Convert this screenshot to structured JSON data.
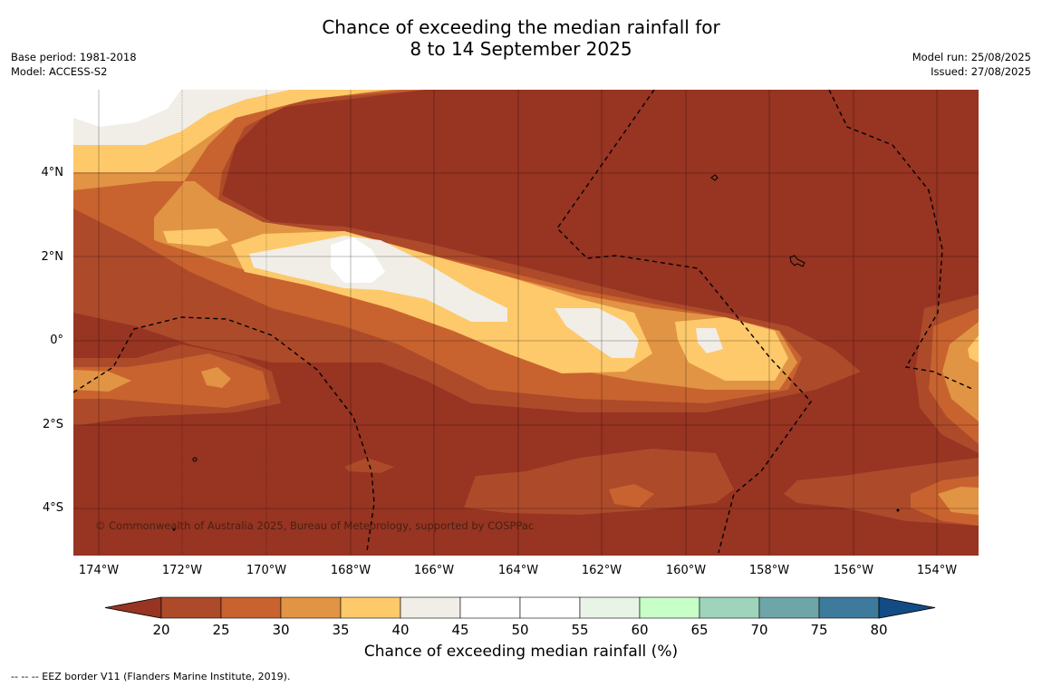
{
  "title_line1": "Chance of exceeding the median rainfall for",
  "title_line2": "8 to 14 September 2025",
  "base_period": "Base period: 1981-2018",
  "model": "Model: ACCESS-S2",
  "model_run": "Model run: 25/08/2025",
  "issued": "Issued: 27/08/2025",
  "copyright": "© Commonwealth of Australia 2025, Bureau of Meteorology, supported by COSPPac",
  "lat_labels": [
    "4°N",
    "2°N",
    "0°",
    "2°S",
    "4°S"
  ],
  "lon_labels": [
    "174°W",
    "172°W",
    "170°W",
    "168°W",
    "166°W",
    "164°W",
    "162°W",
    "160°W",
    "158°W",
    "156°W",
    "154°W"
  ],
  "colorbar": {
    "ticks": [
      "20",
      "25",
      "30",
      "35",
      "40",
      "45",
      "50",
      "55",
      "60",
      "65",
      "70",
      "75",
      "80"
    ],
    "colors": [
      "#973422",
      "#ad4a2a",
      "#c8632f",
      "#e19444",
      "#fdc96a",
      "#f1ede7",
      "#ffffff",
      "#ffffff",
      "#e8f5e6",
      "#c8ffc8",
      "#9ed4bb",
      "#6ea5a9",
      "#3e7a9b",
      "#134c85"
    ],
    "label": "Chance of exceeding median rainfall (%)"
  },
  "eez_note": "--  --  -- EEZ border V11 (Flanders Marine Institute, 2019)."
}
